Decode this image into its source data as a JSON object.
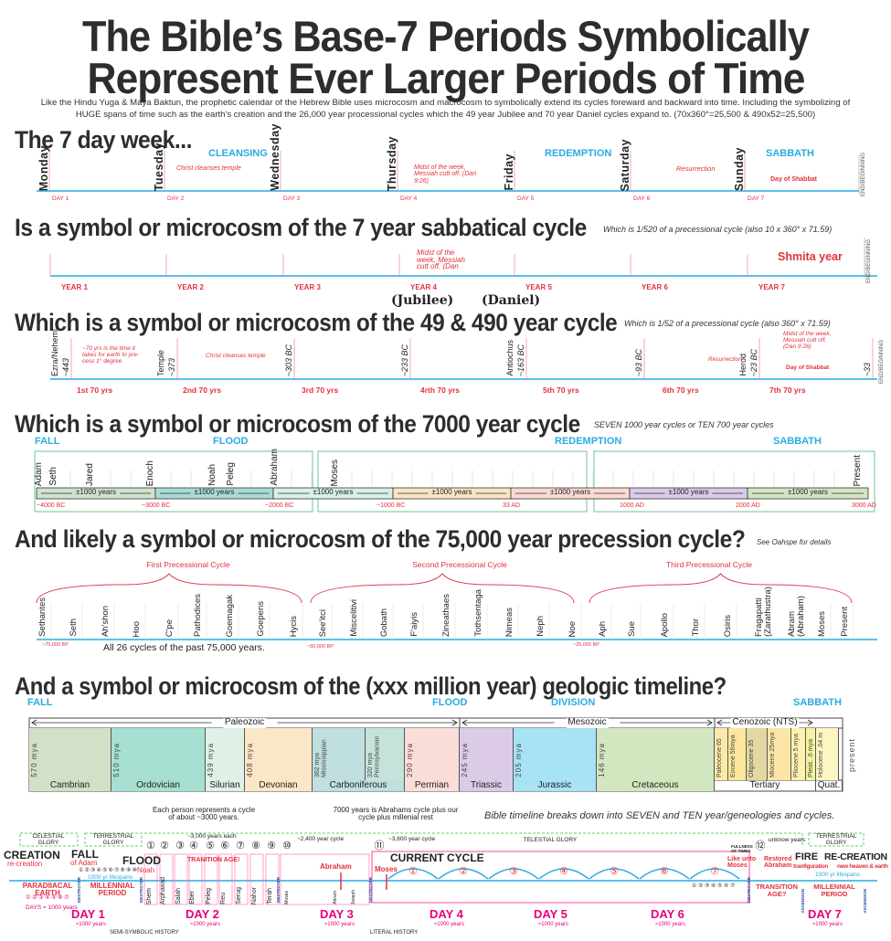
{
  "title": {
    "line1": "The Bible’s Base-7 Periods Symbolically",
    "line2": "Represent Ever Larger Periods of Time"
  },
  "intro": "Like the Hindu Yuga & Maya Baktun, the prophetic calendar of the Hebrew Bible uses microcosm and macrocosm to symbolically extend its cycles foreward and backward into time.  Including the symbolizing of HUGE spans of time such as the earth's creation and the 26,000 year processional cycles which the 49 year Jubilee and 70 year Daniel cycles expand to. (70x360°=25,500 & 490x52=25,500)",
  "colors": {
    "red": "#e2313c",
    "cyan": "#29abe2",
    "magenta": "#e6007e",
    "line": "#5bc0eb",
    "green_box": "#6cc49a"
  },
  "week": {
    "heading": "The 7 day week...",
    "days": [
      "Monday",
      "Tuesday",
      "Wednesday",
      "Thursday",
      "Friday",
      "Saturday",
      "Sunday"
    ],
    "day_labels": [
      "DAY 1",
      "DAY 2",
      "DAY 3",
      "DAY 4",
      "DAY 5",
      "DAY 6",
      "DAY 7"
    ],
    "phases": [
      "CLEANSING",
      "REDEMPTION",
      "SABBATH"
    ],
    "notes": [
      "Christ cleanses temple",
      "Midst of the week, Messiah cutt off. (Dan 9:26)",
      "Resurrection",
      "Day of Shabbat"
    ],
    "end": "END/BEGINNING"
  },
  "sabbatical": {
    "heading": "Is a symbol or microcosm of the 7 year sabbatical cycle",
    "note": "Which is 1/520 of a precessional cycle (also 10 x 360° x 71.59)",
    "years": [
      "YEAR 1",
      "YEAR 2",
      "YEAR 3",
      "YEAR 4",
      "YEAR 5",
      "YEAR 6",
      "YEAR 7"
    ],
    "midst": "Midst of the week, Messiah cutt off. (Dan",
    "shmita": "Shmita year",
    "end": "END/BEGINNING"
  },
  "jubilee": {
    "jubilee": "(Jubilee)",
    "daniel": "(Daniel)",
    "heading": "Which is a symbol or microcosm of the 49 & 490 year cycle",
    "note": "Which is 1/52 of a precessional cycle (also 360° x 71.59)",
    "markers": [
      "Ezra/Nehemi",
      "Temple",
      "Antiochus",
      "Herod"
    ],
    "dates": [
      "~443",
      "~373",
      "~303 BC",
      "~233 BC",
      "~163 BC",
      "~93 BC",
      "~23 BC",
      "~33"
    ],
    "periods": [
      "1st 70 yrs",
      "2nd 70 yrs",
      "3rd 70 yrs",
      "4rth 70 yrs",
      "5th 70 yrs",
      "6th 70 yrs",
      "7th 70 yrs"
    ],
    "notes": [
      "~70 yrs is the time it takes for earth to pre-cess 1° degree",
      "Christ cleanses temple",
      "Resurrection",
      "Midst of the week, Messiah cutt off. (Dan 9:26)",
      "Day of Shabbat"
    ],
    "end": "END/BEGINNING"
  },
  "millennia": {
    "heading": "Which is a symbol or microcosm of the 7000 year cycle",
    "note": "SEVEN 1000 year cycles or TEN 700 year cycles",
    "phases": [
      "FALL",
      "FLOOD",
      "REDEMPTION",
      "SABBATH"
    ],
    "names": [
      "Adam",
      "Seth",
      "Jared",
      "Enoch",
      "Noah",
      "Peleg",
      "Abraham",
      "Moses",
      "Present"
    ],
    "segment_label": "±1000 years",
    "segment_colors": [
      "#cfe3cd",
      "#a9dbd3",
      "#d8efea",
      "#f9e5c3",
      "#f9dad3",
      "#d9cbe8",
      "#d1e6c3"
    ],
    "dates": [
      "~4000 BC",
      "~3000 BC",
      "~2000 BC",
      "~1000 BC",
      "33 AD",
      "1000 AD",
      "2000 AD",
      "3000 AD"
    ]
  },
  "precession": {
    "heading": "And likely a symbol or microcosm of the 75,000 year precession cycle?",
    "note": "See Oahspe for details",
    "cycles": [
      "First Precessional Cycle",
      "Second Precessional Cycle",
      "Third Precessional Cycle"
    ],
    "names": [
      "Sethantes",
      "Seth",
      "Ah'shon",
      "Hoo",
      "C'pe",
      "Pathodices",
      "Goemagak",
      "Goepens",
      "Hycis",
      "See'itci",
      "Miscelitivi",
      "Gobath",
      "F'aiyis",
      "Zineathaes",
      "Tothsentaga",
      "Nimeas",
      "Neph",
      "Noe",
      "Aph",
      "Sue",
      "Apollo",
      "Thor",
      "Osiris",
      "Fragapatti (Zarathustra)",
      "Abram (Abraham)",
      "Moses",
      "Present"
    ],
    "dates": [
      "~75,000 BP",
      "~50,000 BP",
      "~25,000 BP"
    ],
    "caption": "All 26 cycles of the past 75,000 years."
  },
  "geologic": {
    "heading": "And a symbol or microcosm of the (xxx million year) geologic timeline?",
    "phases": [
      "FALL",
      "FLOOD",
      "DIVISION",
      "SABBATH"
    ],
    "eras": [
      "Paleozoic",
      "Mesozoic",
      "Cenozoic (NTS)"
    ],
    "periods": [
      {
        "name": "Cambrian",
        "mya": "570 mya",
        "color": "#d3dfc6"
      },
      {
        "name": "Ordovician",
        "mya": "510 mya",
        "color": "#a6e0d2"
      },
      {
        "name": "Silurian",
        "mya": "439 mya",
        "color": "#dff1e7"
      },
      {
        "name": "Devonian",
        "mya": "408 mya",
        "color": "#fbe6c6"
      },
      {
        "name": "Carboniferous",
        "mya": "362 mya  Mississippian",
        "color": "#bfe0de"
      },
      {
        "name": "",
        "mya": "320 mya  Pennsylvanian",
        "color": "#c5e3da"
      },
      {
        "name": "Permian",
        "mya": "290 mya",
        "color": "#fbddd7"
      },
      {
        "name": "Triassic",
        "mya": "245 mya",
        "color": "#dccbe6"
      },
      {
        "name": "Jurassic",
        "mya": "205 mya",
        "color": "#a8e2f5"
      },
      {
        "name": "Cretaceous",
        "mya": "146 mya",
        "color": "#d2e6bf"
      },
      {
        "name": "",
        "mya": "Paleocene 65",
        "color": "#fbe9a9"
      },
      {
        "name": "",
        "mya": "Eocene 56mya",
        "color": "#fde79a"
      },
      {
        "name": "",
        "mya": "Oligocene 35",
        "color": "#e3d8a1"
      },
      {
        "name": "",
        "mya": "Miocene 25mya",
        "color": "#fbe6a8"
      },
      {
        "name": "",
        "mya": "Pliocene 5 mya",
        "color": "#fdf1b1"
      },
      {
        "name": "",
        "mya": "Pleist. .6 mya",
        "color": "#f4f49c"
      },
      {
        "name": "",
        "mya": "Holocene .04 m",
        "color": "#fdf6c2"
      }
    ],
    "groups": [
      "Tertiary",
      "Quat."
    ],
    "present": "present"
  },
  "bible": {
    "note": "Bible timeline breaks down into SEVEN and TEN year/geneologies and cycles.",
    "person_note": "Each person represents a cycle of about ~3000 years.",
    "abraham_note": "7000 years is Abrahams cycle plus our cycle plus millenial rest",
    "glories": [
      "CELESTIAL GLORY",
      "TERRESTRIAL GLORY",
      "TELESTIAL GLORY",
      "TERRESTRIAL GLORY"
    ],
    "creation": "CREATION",
    "recreation_small": "re-creation",
    "fall": "FALL",
    "of_adam": "of Adam",
    "flood": "FLOOD",
    "noah": "Noah",
    "lifespans": "1000 yr lifespans",
    "years_each": "~3,000 years each",
    "transition": "TRANITION AGE!",
    "cycle_2400": "~2,400 year cycle",
    "abraham": "Abraham",
    "cycle_3600": "~3,600 year cycle",
    "current": "CURRENT CYCLE",
    "moses": "Moses",
    "unknown": "unknow years",
    "fullness": "FULLNESS OF TIMES",
    "like_moses": "Like unto Moses",
    "restored": "Restored Abraham",
    "fire": "FIRE",
    "transfiguration": "tranfiguration",
    "recreation": "RE-CREATION",
    "new_heaven": "new heaven & earth",
    "paradise": "PARADIIACAL EARTH",
    "days_note": "DAYS = 1000 years",
    "millennial": "MILLENNIAL PERIOD",
    "transition2": "TRANSITION AGE?",
    "persons": [
      "Shem",
      "Arphaxad",
      "Salah",
      "Eber",
      "Peleg",
      "Reu",
      "Serug",
      "Nahor",
      "Terah"
    ],
    "small_persons": [
      "Moses",
      "Abram",
      "Joseph"
    ],
    "circled": [
      "①",
      "②",
      "③",
      "④",
      "⑤",
      "⑥",
      "⑦",
      "⑧",
      "⑨",
      "⑩",
      "⑪",
      "⑫"
    ],
    "destroyer": "DESTROYER",
    "ascension": "ASCENSION",
    "days": [
      "DAY 1",
      "DAY 2",
      "DAY 3",
      "DAY 4",
      "DAY 5",
      "DAY 6",
      "DAY 7"
    ],
    "day_years": "≈1000 years",
    "semi": "SEMI-SYMBOLIC HISTORY",
    "literal": "LITERAL HISTORY"
  }
}
